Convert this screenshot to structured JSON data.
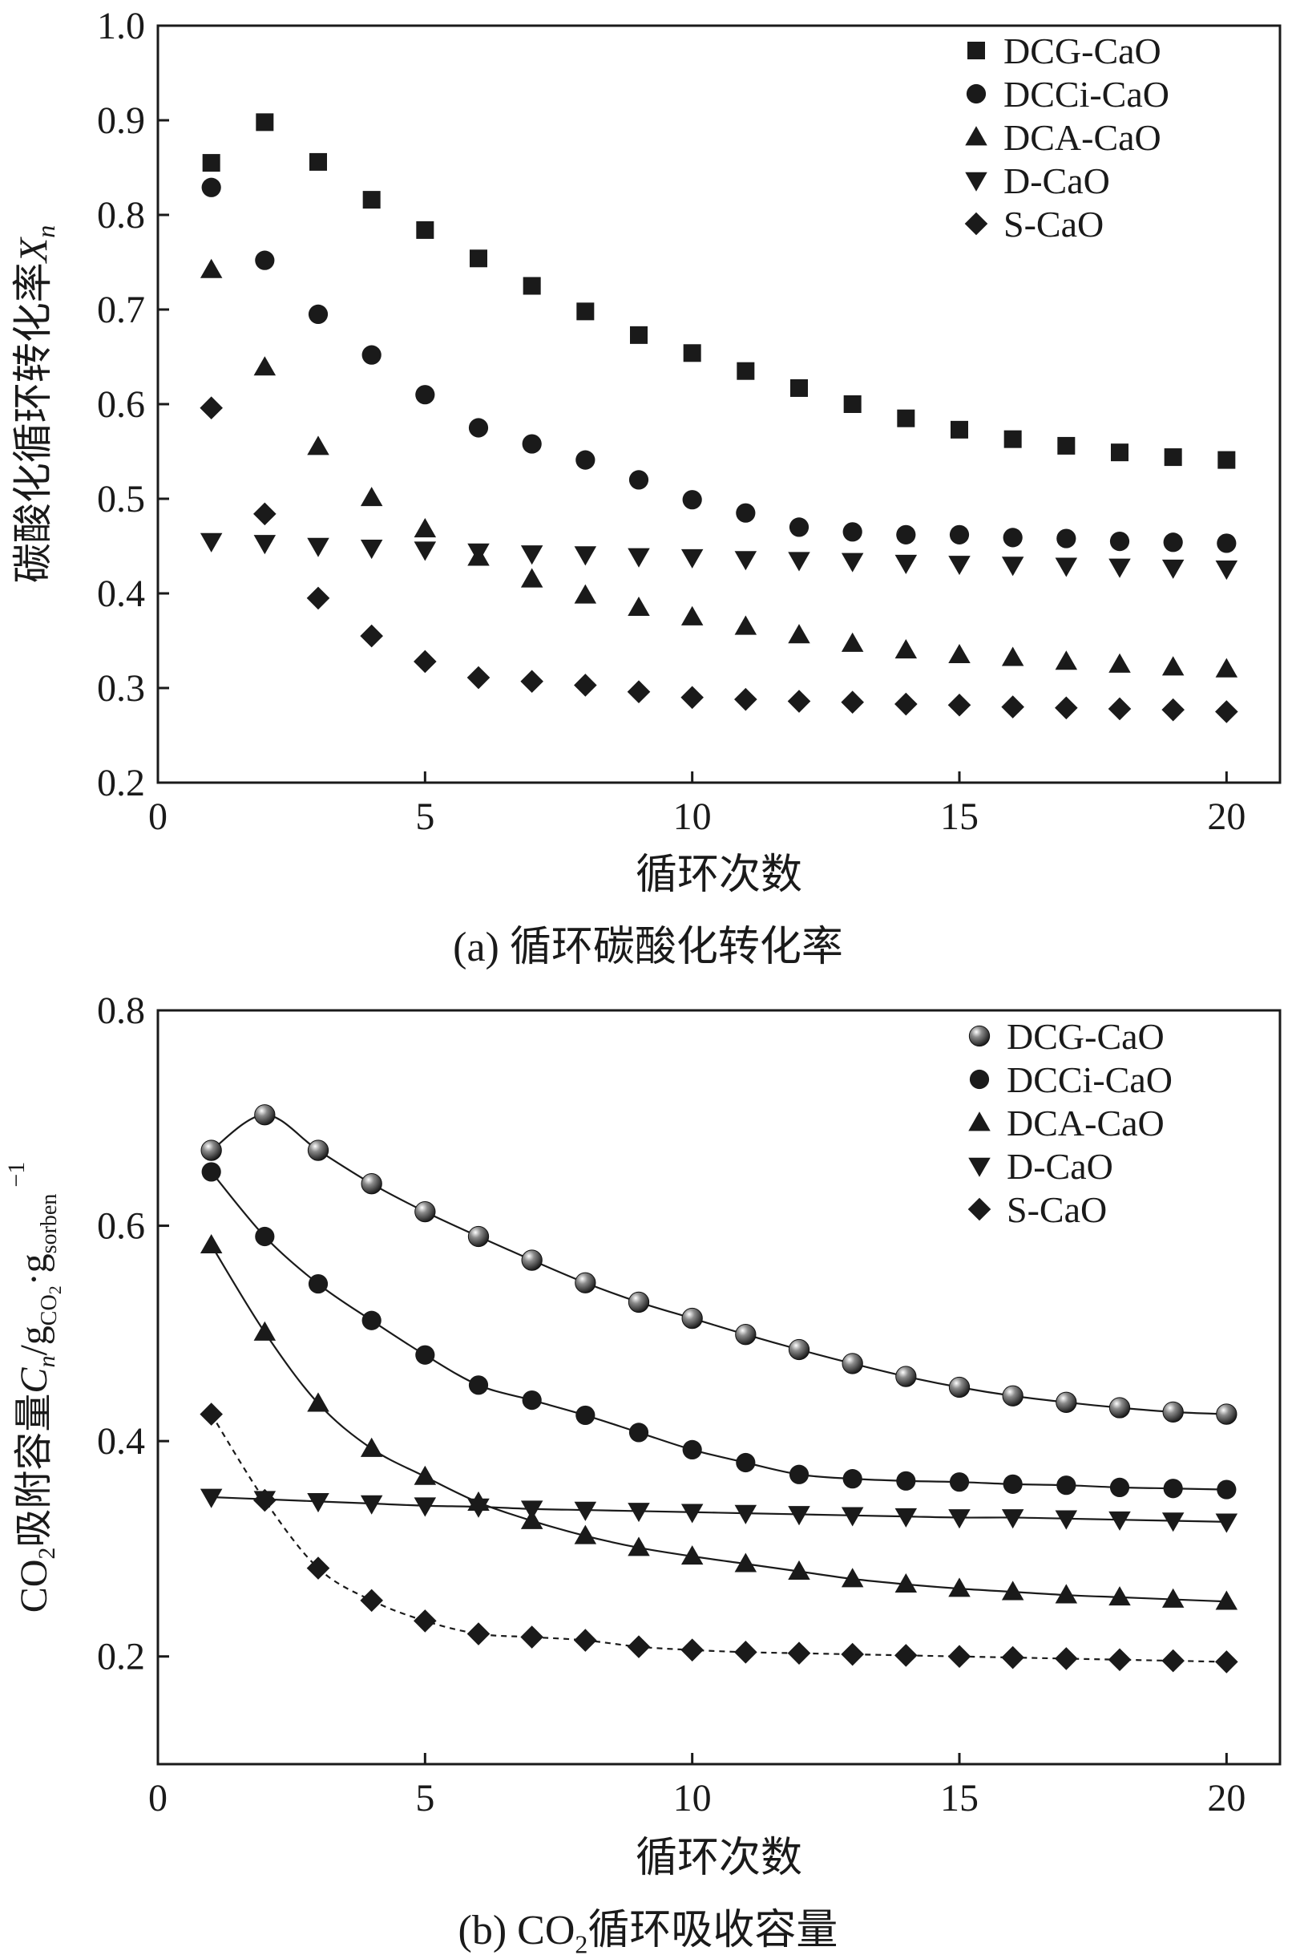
{
  "chart_data": [
    {
      "type": "scatter",
      "panel_caption": "(a) 循环碳酸化转化率",
      "xlabel": "循环次数",
      "ylabel": "碳酸化循环转化率",
      "ylabel_var": "X",
      "ylabel_sub": "n",
      "xlim": [
        0,
        21
      ],
      "ylim": [
        0.2,
        1.0
      ],
      "xticks": [
        0,
        5,
        10,
        15,
        20
      ],
      "yticks": [
        0.2,
        0.3,
        0.4,
        0.5,
        0.6,
        0.7,
        0.8,
        0.9,
        1.0
      ],
      "ytick_labels": [
        "0.2",
        "0.3",
        "0.4",
        "0.5",
        "0.6",
        "0.7",
        "0.8",
        "0.9",
        "1.0"
      ],
      "legend_position": "top-right",
      "x": [
        1,
        2,
        3,
        4,
        5,
        6,
        7,
        8,
        9,
        10,
        11,
        12,
        13,
        14,
        15,
        16,
        17,
        18,
        19,
        20
      ],
      "series": [
        {
          "name": "DCG-CaO",
          "marker": "square",
          "values": [
            0.855,
            0.898,
            0.856,
            0.816,
            0.784,
            0.754,
            0.725,
            0.698,
            0.673,
            0.654,
            0.635,
            0.617,
            0.6,
            0.585,
            0.573,
            0.563,
            0.556,
            0.549,
            0.544,
            0.541
          ]
        },
        {
          "name": "DCCi-CaO",
          "marker": "circle",
          "values": [
            0.829,
            0.752,
            0.695,
            0.652,
            0.61,
            0.575,
            0.558,
            0.541,
            0.52,
            0.499,
            0.485,
            0.47,
            0.465,
            0.462,
            0.462,
            0.459,
            0.458,
            0.455,
            0.454,
            0.453
          ]
        },
        {
          "name": "DCA-CaO",
          "marker": "triangle-up",
          "values": [
            0.742,
            0.639,
            0.555,
            0.501,
            0.468,
            0.438,
            0.415,
            0.398,
            0.385,
            0.375,
            0.365,
            0.356,
            0.347,
            0.34,
            0.335,
            0.332,
            0.328,
            0.325,
            0.322,
            0.32
          ]
        },
        {
          "name": "D-CaO",
          "marker": "triangle-down",
          "values": [
            0.455,
            0.453,
            0.45,
            0.448,
            0.446,
            0.444,
            0.442,
            0.441,
            0.439,
            0.438,
            0.436,
            0.435,
            0.434,
            0.432,
            0.431,
            0.43,
            0.429,
            0.428,
            0.427,
            0.426
          ]
        },
        {
          "name": "S-CaO",
          "marker": "diamond",
          "values": [
            0.596,
            0.484,
            0.395,
            0.355,
            0.328,
            0.311,
            0.307,
            0.303,
            0.296,
            0.29,
            0.288,
            0.286,
            0.285,
            0.283,
            0.282,
            0.28,
            0.279,
            0.278,
            0.277,
            0.275
          ]
        }
      ]
    },
    {
      "type": "line",
      "panel_caption_pre": "(b) CO",
      "panel_caption_sub": "2",
      "panel_caption_post": "循环吸收容量",
      "xlabel": "循环次数",
      "ylabel_pre": "CO",
      "ylabel_sub1": "2",
      "ylabel_mid": "吸附容量",
      "ylabel_var": "C",
      "ylabel_var_sub": "n",
      "ylabel_unit_g1": "/g",
      "ylabel_unit_sub1": "CO",
      "ylabel_unit_sub1b": "2",
      "ylabel_dot": "·",
      "ylabel_unit_g2": "g",
      "ylabel_unit_sub2": "sorben",
      "ylabel_sup": "−1",
      "xlim": [
        0,
        21
      ],
      "ylim": [
        0.1,
        0.8
      ],
      "xticks": [
        0,
        5,
        10,
        15,
        20
      ],
      "yticks": [
        0.2,
        0.4,
        0.6,
        0.8
      ],
      "ytick_labels": [
        "0.2",
        "0.4",
        "0.6",
        "0.8"
      ],
      "legend_position": "top-right",
      "x": [
        1,
        2,
        3,
        4,
        5,
        6,
        7,
        8,
        9,
        10,
        11,
        12,
        13,
        14,
        15,
        16,
        17,
        18,
        19,
        20
      ],
      "series": [
        {
          "name": "DCG-CaO",
          "marker": "sphere",
          "line": "solid",
          "values": [
            0.67,
            0.703,
            0.67,
            0.639,
            0.613,
            0.59,
            0.568,
            0.547,
            0.529,
            0.514,
            0.499,
            0.485,
            0.472,
            0.46,
            0.45,
            0.442,
            0.436,
            0.431,
            0.427,
            0.425
          ]
        },
        {
          "name": "DCCi-CaO",
          "marker": "circle",
          "line": "solid",
          "values": [
            0.65,
            0.59,
            0.546,
            0.512,
            0.48,
            0.452,
            0.438,
            0.424,
            0.408,
            0.392,
            0.38,
            0.369,
            0.365,
            0.363,
            0.362,
            0.36,
            0.359,
            0.357,
            0.356,
            0.355
          ]
        },
        {
          "name": "DCA-CaO",
          "marker": "triangle-up",
          "line": "solid",
          "values": [
            0.582,
            0.501,
            0.435,
            0.393,
            0.367,
            0.343,
            0.326,
            0.312,
            0.301,
            0.293,
            0.286,
            0.279,
            0.272,
            0.267,
            0.263,
            0.26,
            0.257,
            0.255,
            0.253,
            0.251
          ]
        },
        {
          "name": "D-CaO",
          "marker": "triangle-down",
          "line": "solid",
          "values": [
            0.348,
            0.346,
            0.344,
            0.342,
            0.34,
            0.339,
            0.337,
            0.336,
            0.335,
            0.334,
            0.333,
            0.332,
            0.331,
            0.33,
            0.329,
            0.329,
            0.328,
            0.327,
            0.326,
            0.325
          ]
        },
        {
          "name": "S-CaO",
          "marker": "diamond",
          "line": "dashed",
          "values": [
            0.425,
            0.345,
            0.282,
            0.252,
            0.233,
            0.221,
            0.218,
            0.215,
            0.209,
            0.206,
            0.204,
            0.203,
            0.202,
            0.201,
            0.2,
            0.199,
            0.198,
            0.197,
            0.196,
            0.195
          ]
        }
      ]
    }
  ]
}
